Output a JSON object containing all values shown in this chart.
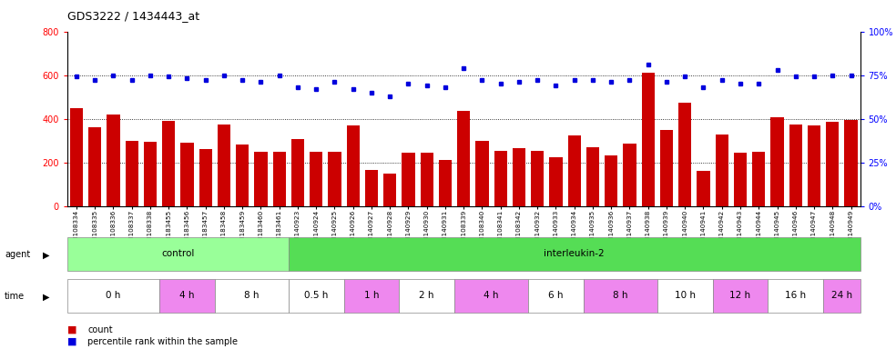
{
  "title": "GDS3222 / 1434443_at",
  "categories": [
    "GSM108334",
    "GSM108335",
    "GSM108336",
    "GSM108337",
    "GSM108338",
    "GSM183455",
    "GSM183456",
    "GSM183457",
    "GSM183458",
    "GSM183459",
    "GSM183460",
    "GSM183461",
    "GSM140923",
    "GSM140924",
    "GSM140925",
    "GSM140926",
    "GSM140927",
    "GSM140928",
    "GSM140929",
    "GSM140930",
    "GSM140931",
    "GSM108339",
    "GSM108340",
    "GSM108341",
    "GSM108342",
    "GSM140932",
    "GSM140933",
    "GSM140934",
    "GSM140935",
    "GSM140936",
    "GSM140937",
    "GSM140938",
    "GSM140939",
    "GSM140940",
    "GSM140941",
    "GSM140942",
    "GSM140943",
    "GSM140944",
    "GSM140945",
    "GSM140946",
    "GSM140947",
    "GSM140948",
    "GSM140949"
  ],
  "counts": [
    450,
    360,
    420,
    300,
    295,
    390,
    290,
    260,
    375,
    280,
    250,
    248,
    305,
    250,
    248,
    370,
    165,
    148,
    242,
    242,
    210,
    435,
    300,
    252,
    265,
    252,
    225,
    325,
    268,
    230,
    285,
    610,
    350,
    475,
    160,
    328,
    242,
    248,
    405,
    375,
    370,
    385,
    395
  ],
  "percentiles": [
    74,
    72,
    75,
    72,
    75,
    74,
    73,
    72,
    75,
    72,
    71,
    75,
    68,
    67,
    71,
    67,
    65,
    63,
    70,
    69,
    68,
    79,
    72,
    70,
    71,
    72,
    69,
    72,
    72,
    71,
    72,
    81,
    71,
    74,
    68,
    72,
    70,
    70,
    78,
    74,
    74,
    75,
    75
  ],
  "ylim_left": [
    0,
    800
  ],
  "ylim_right": [
    0,
    100
  ],
  "yticks_left": [
    0,
    200,
    400,
    600,
    800
  ],
  "yticks_right": [
    0,
    25,
    50,
    75,
    100
  ],
  "ytick_labels_right": [
    "0%",
    "25%",
    "50%",
    "75%",
    "100%"
  ],
  "bar_color": "#cc0000",
  "dot_color": "#0000dd",
  "agent_groups": [
    {
      "label": "control",
      "start": 0,
      "end": 11,
      "color": "#99ff99"
    },
    {
      "label": "interleukin-2",
      "start": 12,
      "end": 42,
      "color": "#55dd55"
    }
  ],
  "time_groups": [
    {
      "label": "0 h",
      "start": 0,
      "end": 4,
      "color": "#ffffff"
    },
    {
      "label": "4 h",
      "start": 5,
      "end": 7,
      "color": "#ee88ee"
    },
    {
      "label": "8 h",
      "start": 8,
      "end": 11,
      "color": "#ffffff"
    },
    {
      "label": "0.5 h",
      "start": 12,
      "end": 14,
      "color": "#ffffff"
    },
    {
      "label": "1 h",
      "start": 15,
      "end": 17,
      "color": "#ee88ee"
    },
    {
      "label": "2 h",
      "start": 18,
      "end": 20,
      "color": "#ffffff"
    },
    {
      "label": "4 h",
      "start": 21,
      "end": 24,
      "color": "#ee88ee"
    },
    {
      "label": "6 h",
      "start": 25,
      "end": 27,
      "color": "#ffffff"
    },
    {
      "label": "8 h",
      "start": 28,
      "end": 31,
      "color": "#ee88ee"
    },
    {
      "label": "10 h",
      "start": 32,
      "end": 34,
      "color": "#ffffff"
    },
    {
      "label": "12 h",
      "start": 35,
      "end": 37,
      "color": "#ee88ee"
    },
    {
      "label": "16 h",
      "start": 38,
      "end": 40,
      "color": "#ffffff"
    },
    {
      "label": "24 h",
      "start": 41,
      "end": 42,
      "color": "#ee88ee"
    }
  ],
  "legend_count_color": "#cc0000",
  "legend_dot_color": "#0000dd",
  "bg_color": "#ffffff"
}
